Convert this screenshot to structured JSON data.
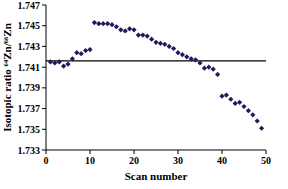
{
  "chart_data": {
    "type": "scatter",
    "x_label": "Scan number",
    "y_label": "Isotopic ratio ⁶⁴Zn/⁶⁶Zn",
    "x": [
      1,
      2,
      3,
      4,
      5,
      6,
      7,
      8,
      9,
      10,
      11,
      12,
      13,
      14,
      15,
      16,
      17,
      18,
      19,
      20,
      21,
      22,
      23,
      24,
      25,
      26,
      27,
      28,
      29,
      30,
      31,
      32,
      33,
      34,
      35,
      36,
      37,
      38,
      39,
      40,
      41,
      42,
      43,
      44,
      45,
      46,
      47,
      48,
      49
    ],
    "values": [
      1.7415,
      1.7414,
      1.7415,
      1.7411,
      1.7413,
      1.7418,
      1.7424,
      1.7423,
      1.7426,
      1.7427,
      1.7453,
      1.7452,
      1.7452,
      1.7452,
      1.7451,
      1.7449,
      1.7446,
      1.7445,
      1.7447,
      1.7446,
      1.7441,
      1.7441,
      1.744,
      1.7437,
      1.7434,
      1.7433,
      1.7432,
      1.743,
      1.7428,
      1.7424,
      1.7422,
      1.742,
      1.7418,
      1.7417,
      1.7414,
      1.7409,
      1.741,
      1.7408,
      1.7403,
      1.7382,
      1.7383,
      1.7379,
      1.7375,
      1.7376,
      1.7372,
      1.7368,
      1.7364,
      1.7358,
      1.7351
    ],
    "reference_line": 1.7416,
    "color": "#1c1c5c",
    "marker": "diamond",
    "xlim": [
      0,
      50
    ],
    "xticks": [
      0,
      10,
      20,
      30,
      40,
      50
    ],
    "ylim": [
      1.733,
      1.747
    ],
    "yticks": [
      1.733,
      1.735,
      1.737,
      1.739,
      1.741,
      1.743,
      1.745,
      1.747
    ],
    "grid": false
  }
}
